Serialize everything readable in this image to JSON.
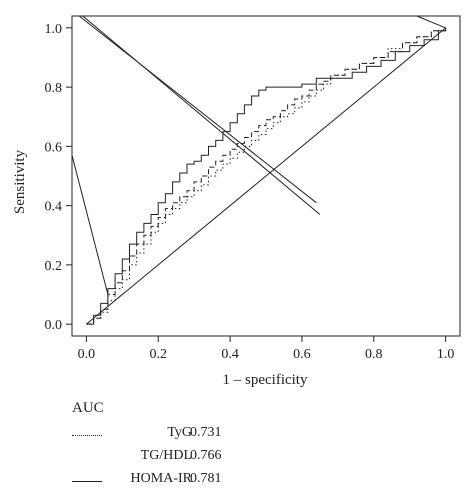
{
  "chart_data": {
    "type": "line",
    "xlabel": "1 – specificity",
    "ylabel": "Sensitivity",
    "xlim": [
      -0.04,
      1.04
    ],
    "ylim": [
      -0.04,
      1.04
    ],
    "x_ticks": [
      "0.0",
      "0.2",
      "0.4",
      "0.6",
      "0.8",
      "1.0"
    ],
    "y_ticks": [
      "0.0",
      "0.2",
      "0.4",
      "0.6",
      "0.8",
      "1.0"
    ],
    "grid": false,
    "legend_position": "below",
    "legend_title": "AUC",
    "series": [
      {
        "name": "TyG",
        "auc": "0.731",
        "dash": "dotted",
        "points": [
          [
            0,
            0
          ],
          [
            0.02,
            0.02
          ],
          [
            0.04,
            0.04
          ],
          [
            0.06,
            0.08
          ],
          [
            0.08,
            0.12
          ],
          [
            0.1,
            0.15
          ],
          [
            0.12,
            0.2
          ],
          [
            0.14,
            0.24
          ],
          [
            0.16,
            0.27
          ],
          [
            0.18,
            0.31
          ],
          [
            0.2,
            0.34
          ],
          [
            0.22,
            0.37
          ],
          [
            0.24,
            0.39
          ],
          [
            0.26,
            0.41
          ],
          [
            0.28,
            0.43
          ],
          [
            0.3,
            0.45
          ],
          [
            0.32,
            0.47
          ],
          [
            0.34,
            0.5
          ],
          [
            0.36,
            0.52
          ],
          [
            0.38,
            0.54
          ],
          [
            0.4,
            0.56
          ],
          [
            0.42,
            0.58
          ],
          [
            0.44,
            0.6
          ],
          [
            0.46,
            0.62
          ],
          [
            0.48,
            0.64
          ],
          [
            0.5,
            0.66
          ],
          [
            0.52,
            0.68
          ],
          [
            0.54,
            0.7
          ],
          [
            0.56,
            0.71
          ],
          [
            0.58,
            0.73
          ],
          [
            0.6,
            0.75
          ],
          [
            0.62,
            0.77
          ],
          [
            0.64,
            0.79
          ],
          [
            0.66,
            0.81
          ],
          [
            0.68,
            0.83
          ],
          [
            0.7,
            0.84
          ],
          [
            0.72,
            0.86
          ],
          [
            0.76,
            0.88
          ],
          [
            0.8,
            0.9
          ],
          [
            0.84,
            0.93
          ],
          [
            0.88,
            0.95
          ],
          [
            0.92,
            0.97
          ],
          [
            0.96,
            0.99
          ],
          [
            1.0,
            1.0
          ]
        ]
      },
      {
        "name": "TG/HDL",
        "auc": "0.766",
        "dash": "dashed",
        "points": [
          [
            0,
            0
          ],
          [
            0.02,
            0.02
          ],
          [
            0.04,
            0.05
          ],
          [
            0.06,
            0.1
          ],
          [
            0.08,
            0.14
          ],
          [
            0.1,
            0.18
          ],
          [
            0.12,
            0.23
          ],
          [
            0.14,
            0.27
          ],
          [
            0.16,
            0.3
          ],
          [
            0.18,
            0.33
          ],
          [
            0.2,
            0.36
          ],
          [
            0.22,
            0.39
          ],
          [
            0.24,
            0.41
          ],
          [
            0.26,
            0.43
          ],
          [
            0.28,
            0.45
          ],
          [
            0.3,
            0.48
          ],
          [
            0.32,
            0.5
          ],
          [
            0.34,
            0.53
          ],
          [
            0.36,
            0.55
          ],
          [
            0.38,
            0.57
          ],
          [
            0.4,
            0.59
          ],
          [
            0.42,
            0.61
          ],
          [
            0.44,
            0.63
          ],
          [
            0.46,
            0.65
          ],
          [
            0.48,
            0.67
          ],
          [
            0.5,
            0.69
          ],
          [
            0.52,
            0.7
          ],
          [
            0.54,
            0.72
          ],
          [
            0.56,
            0.74
          ],
          [
            0.58,
            0.76
          ],
          [
            0.6,
            0.77
          ],
          [
            0.62,
            0.79
          ],
          [
            0.64,
            0.81
          ],
          [
            0.66,
            0.82
          ],
          [
            0.68,
            0.84
          ],
          [
            0.72,
            0.86
          ],
          [
            0.76,
            0.88
          ],
          [
            0.8,
            0.9
          ],
          [
            0.84,
            0.92
          ],
          [
            0.88,
            0.95
          ],
          [
            0.92,
            0.97
          ],
          [
            0.96,
            0.99
          ],
          [
            1.0,
            1.0
          ]
        ]
      },
      {
        "name": "HOMA-IR",
        "auc": "0.781",
        "dash": "solid",
        "points": [
          [
            0,
            0
          ],
          [
            0.02,
            0.03
          ],
          [
            0.04,
            0.07
          ],
          [
            0.06,
            0.12
          ],
          [
            0.08,
            0.17
          ],
          [
            0.1,
            0.22
          ],
          [
            0.12,
            0.27
          ],
          [
            0.14,
            0.31
          ],
          [
            0.16,
            0.34
          ],
          [
            0.18,
            0.37
          ],
          [
            0.2,
            0.41
          ],
          [
            0.22,
            0.44
          ],
          [
            0.24,
            0.48
          ],
          [
            0.26,
            0.51
          ],
          [
            0.28,
            0.54
          ],
          [
            0.3,
            0.55
          ],
          [
            0.32,
            0.57
          ],
          [
            0.34,
            0.6
          ],
          [
            0.36,
            0.62
          ],
          [
            0.38,
            0.65
          ],
          [
            0.4,
            0.68
          ],
          [
            0.42,
            0.71
          ],
          [
            0.44,
            0.74
          ],
          [
            0.46,
            0.77
          ],
          [
            0.48,
            0.79
          ],
          [
            0.5,
            0.8
          ],
          [
            0.52,
            0.8
          ],
          [
            0.56,
            0.8
          ],
          [
            0.6,
            0.81
          ],
          [
            0.64,
            0.83
          ],
          [
            0.7,
            0.83
          ],
          [
            0.74,
            0.85
          ],
          [
            0.78,
            0.87
          ],
          [
            0.82,
            0.89
          ],
          [
            0.86,
            0.92
          ],
          [
            0.9,
            0.94
          ],
          [
            0.94,
            0.96
          ],
          [
            0.98,
            0.99
          ],
          [
            1.0,
            1.0
          ]
        ]
      }
    ],
    "reference_line": [
      [
        0,
        0
      ],
      [
        1,
        1
      ]
    ],
    "extra_lines": [
      [
        [
          -0.02,
          1.04
        ],
        [
          0.64,
          0.41
        ]
      ],
      [
        [
          -0.01,
          1.04
        ],
        [
          0.65,
          0.37
        ]
      ],
      [
        [
          -0.04,
          0.57
        ],
        [
          0.06,
          0.1
        ]
      ],
      [
        [
          0.92,
          1.04
        ],
        [
          1.0,
          1.0
        ]
      ]
    ]
  }
}
